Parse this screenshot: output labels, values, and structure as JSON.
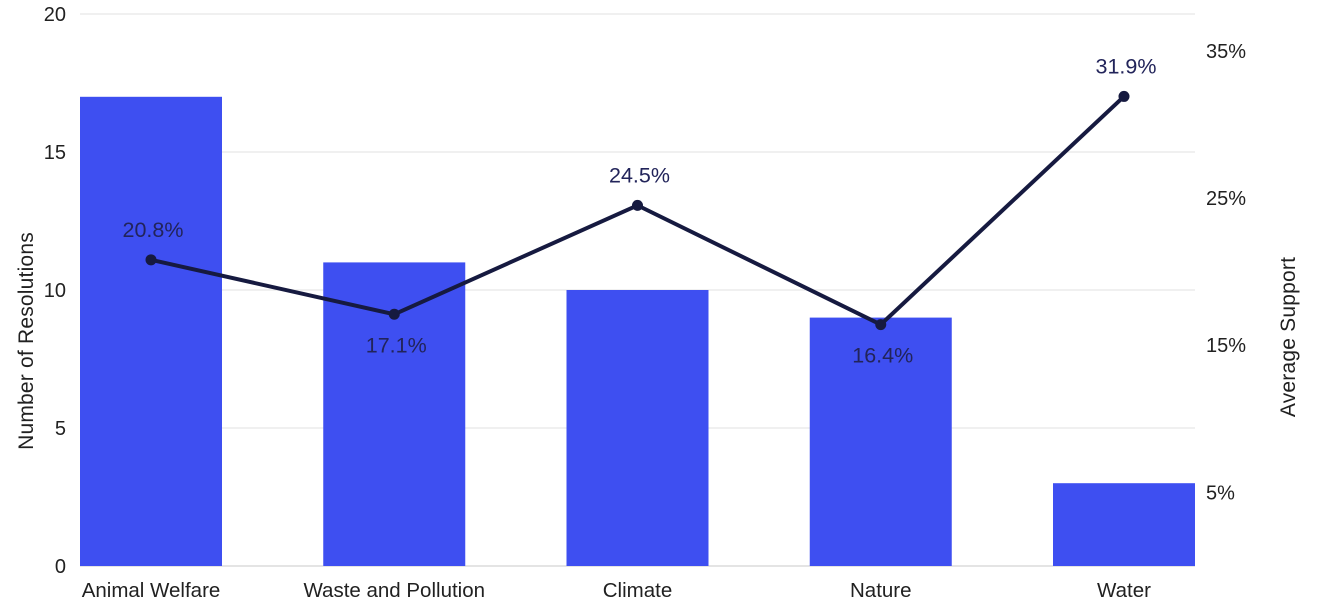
{
  "chart_data": {
    "type": "combo-bar-line",
    "title": "",
    "categories": [
      "Animal Welfare",
      "Waste and Pollution",
      "Climate",
      "Nature",
      "Water"
    ],
    "series": [
      {
        "name": "Number of Resolutions",
        "type": "bar",
        "axis": "left",
        "values": [
          17,
          11,
          10,
          9,
          3
        ]
      },
      {
        "name": "Average Support",
        "type": "line",
        "axis": "right",
        "values": [
          20.8,
          17.1,
          24.5,
          16.4,
          31.9
        ],
        "point_labels": [
          "20.8%",
          "17.1%",
          "24.5%",
          "16.4%",
          "31.9%"
        ],
        "label_placement": [
          "above",
          "below",
          "above",
          "below",
          "above"
        ]
      }
    ],
    "left_axis": {
      "title": "Number of Resolutions",
      "range": [
        0,
        20
      ],
      "ticks": [
        0,
        5,
        10,
        15,
        20
      ],
      "tick_labels": [
        "0",
        "5",
        "10",
        "15",
        "20"
      ]
    },
    "right_axis": {
      "title": "Average Support",
      "range": [
        0,
        37.5
      ],
      "ticks": [
        5,
        15,
        25,
        35
      ],
      "tick_labels": [
        "5%",
        "15%",
        "25%",
        "35%"
      ]
    },
    "grid": "horizontal",
    "legend": "none",
    "colors": {
      "bar": "#3e4ff1",
      "line": "#161a40",
      "point": "#161a40",
      "point_label_text": "#22245a",
      "axis_text": "#212121",
      "gridline": "#e7e7e7",
      "baseline": "#dcdcdc",
      "background": "#ffffff"
    }
  }
}
